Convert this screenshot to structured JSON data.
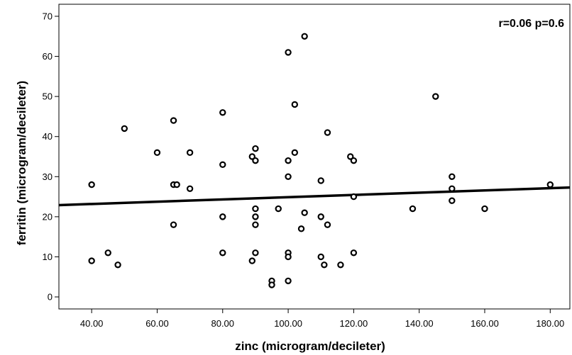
{
  "chart_data": {
    "type": "scatter",
    "title": "",
    "xlabel": "zinc (microgram/decileter)",
    "ylabel": "ferritin (microgram/decileter)",
    "annotation": "r=0.06  p=0.6",
    "xlim": [
      30,
      186
    ],
    "ylim": [
      -3,
      73
    ],
    "xticks": [
      40,
      60,
      80,
      100,
      120,
      140,
      160,
      180
    ],
    "xtick_labels": [
      "40.00",
      "60.00",
      "80.00",
      "100.00",
      "120.00",
      "140.00",
      "160.00",
      "180.00"
    ],
    "yticks": [
      0,
      10,
      20,
      30,
      40,
      50,
      60,
      70
    ],
    "ytick_labels": [
      "0",
      "10",
      "20",
      "30",
      "40",
      "50",
      "60",
      "70"
    ],
    "grid": false,
    "points": [
      {
        "x": 40,
        "y": 28
      },
      {
        "x": 40,
        "y": 9
      },
      {
        "x": 45,
        "y": 11
      },
      {
        "x": 48,
        "y": 8
      },
      {
        "x": 50,
        "y": 42
      },
      {
        "x": 60,
        "y": 36
      },
      {
        "x": 65,
        "y": 44
      },
      {
        "x": 65,
        "y": 28
      },
      {
        "x": 66,
        "y": 28
      },
      {
        "x": 65,
        "y": 18
      },
      {
        "x": 70,
        "y": 36
      },
      {
        "x": 70,
        "y": 27
      },
      {
        "x": 80,
        "y": 46
      },
      {
        "x": 80,
        "y": 33
      },
      {
        "x": 80,
        "y": 20
      },
      {
        "x": 80,
        "y": 11
      },
      {
        "x": 89,
        "y": 35
      },
      {
        "x": 90,
        "y": 37
      },
      {
        "x": 90,
        "y": 34
      },
      {
        "x": 90,
        "y": 22
      },
      {
        "x": 90,
        "y": 20
      },
      {
        "x": 90,
        "y": 18
      },
      {
        "x": 90,
        "y": 11
      },
      {
        "x": 89,
        "y": 9
      },
      {
        "x": 95,
        "y": 4
      },
      {
        "x": 95,
        "y": 3
      },
      {
        "x": 97,
        "y": 22
      },
      {
        "x": 100,
        "y": 61
      },
      {
        "x": 100,
        "y": 34
      },
      {
        "x": 100,
        "y": 30
      },
      {
        "x": 100,
        "y": 11
      },
      {
        "x": 100,
        "y": 10
      },
      {
        "x": 100,
        "y": 4
      },
      {
        "x": 102,
        "y": 48
      },
      {
        "x": 102,
        "y": 36
      },
      {
        "x": 104,
        "y": 17
      },
      {
        "x": 105,
        "y": 65
      },
      {
        "x": 105,
        "y": 21
      },
      {
        "x": 110,
        "y": 29
      },
      {
        "x": 110,
        "y": 20
      },
      {
        "x": 110,
        "y": 10
      },
      {
        "x": 111,
        "y": 8
      },
      {
        "x": 112,
        "y": 41
      },
      {
        "x": 112,
        "y": 18
      },
      {
        "x": 116,
        "y": 8
      },
      {
        "x": 119,
        "y": 35
      },
      {
        "x": 120,
        "y": 34
      },
      {
        "x": 120,
        "y": 25
      },
      {
        "x": 120,
        "y": 11
      },
      {
        "x": 138,
        "y": 22
      },
      {
        "x": 145,
        "y": 50
      },
      {
        "x": 150,
        "y": 30
      },
      {
        "x": 150,
        "y": 27
      },
      {
        "x": 150,
        "y": 24
      },
      {
        "x": 160,
        "y": 22
      },
      {
        "x": 180,
        "y": 28
      }
    ],
    "fit_line": {
      "x": [
        30,
        186
      ],
      "y": [
        22.9,
        27.3
      ]
    }
  }
}
